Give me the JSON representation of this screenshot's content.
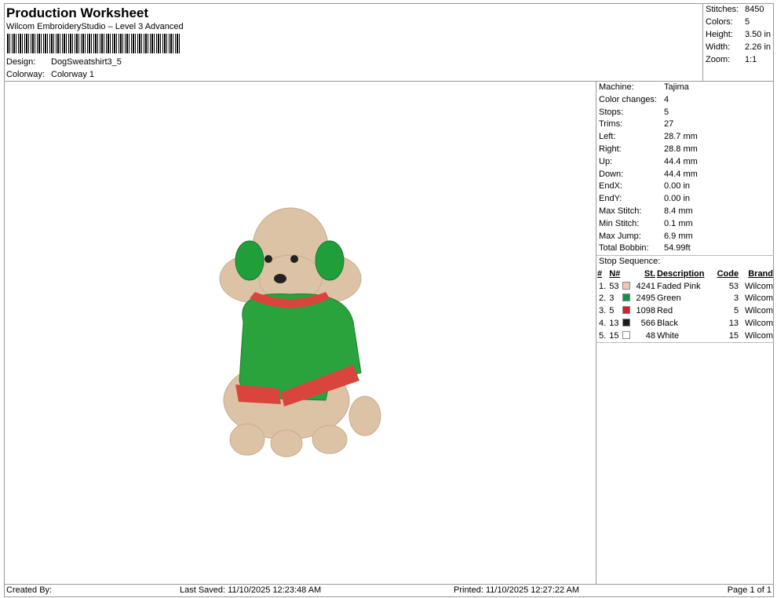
{
  "header": {
    "title": "Production Worksheet",
    "subtitle": "Wilcom EmbroideryStudio – Level 3 Advanced",
    "design_label": "Design:",
    "design_value": "DogSweatshirt3_5",
    "colorway_label": "Colorway:",
    "colorway_value": "Colorway 1"
  },
  "stats": [
    {
      "label": "Stitches:",
      "value": "8450"
    },
    {
      "label": "Colors:",
      "value": "5"
    },
    {
      "label": "Height:",
      "value": "3.50 in"
    },
    {
      "label": "Width:",
      "value": "2.26 in"
    },
    {
      "label": "Zoom:",
      "value": "1:1"
    }
  ],
  "machine": [
    {
      "label": "Machine:",
      "value": "Tajima"
    },
    {
      "label": "Color changes:",
      "value": "4"
    },
    {
      "label": "Stops:",
      "value": "5"
    },
    {
      "label": "Trims:",
      "value": "27"
    },
    {
      "label": "Left:",
      "value": "28.7 mm"
    },
    {
      "label": "Right:",
      "value": "28.8 mm"
    },
    {
      "label": "Up:",
      "value": "44.4 mm"
    },
    {
      "label": "Down:",
      "value": "44.4 mm"
    },
    {
      "label": "EndX:",
      "value": "0.00 in"
    },
    {
      "label": "EndY:",
      "value": "0.00 in"
    },
    {
      "label": "Max Stitch:",
      "value": "8.4 mm"
    },
    {
      "label": "Min Stitch:",
      "value": "0.1 mm"
    },
    {
      "label": "Max Jump:",
      "value": "6.9 mm"
    },
    {
      "label": "Total Bobbin:",
      "value": "54.99ft"
    }
  ],
  "stop_sequence": {
    "label": "Stop Sequence:",
    "headers": [
      "#",
      "N#",
      "St.",
      "Description",
      "Code",
      "Brand"
    ],
    "rows": [
      {
        "num": "1.",
        "n": "53",
        "color": "#f2c4b8",
        "st": "4241",
        "desc": "Faded Pink",
        "code": "53",
        "brand": "Wilcom"
      },
      {
        "num": "2.",
        "n": "3",
        "color": "#12924a",
        "st": "2495",
        "desc": "Green",
        "code": "3",
        "brand": "Wilcom"
      },
      {
        "num": "3.",
        "n": "5",
        "color": "#d81e26",
        "st": "1098",
        "desc": "Red",
        "code": "5",
        "brand": "Wilcom"
      },
      {
        "num": "4.",
        "n": "13",
        "color": "#1a1a1a",
        "st": "566",
        "desc": "Black",
        "code": "13",
        "brand": "Wilcom"
      },
      {
        "num": "5.",
        "n": "15",
        "color": "#ffffff",
        "st": "48",
        "desc": "White",
        "code": "15",
        "brand": "Wilcom"
      }
    ]
  },
  "footer": {
    "created_by": "Created By:",
    "last_saved": "Last Saved: 11/10/2025 12:23:48 AM",
    "printed": "Printed: 11/10/2025 12:27:22 AM",
    "page": "Page 1 of 1"
  }
}
